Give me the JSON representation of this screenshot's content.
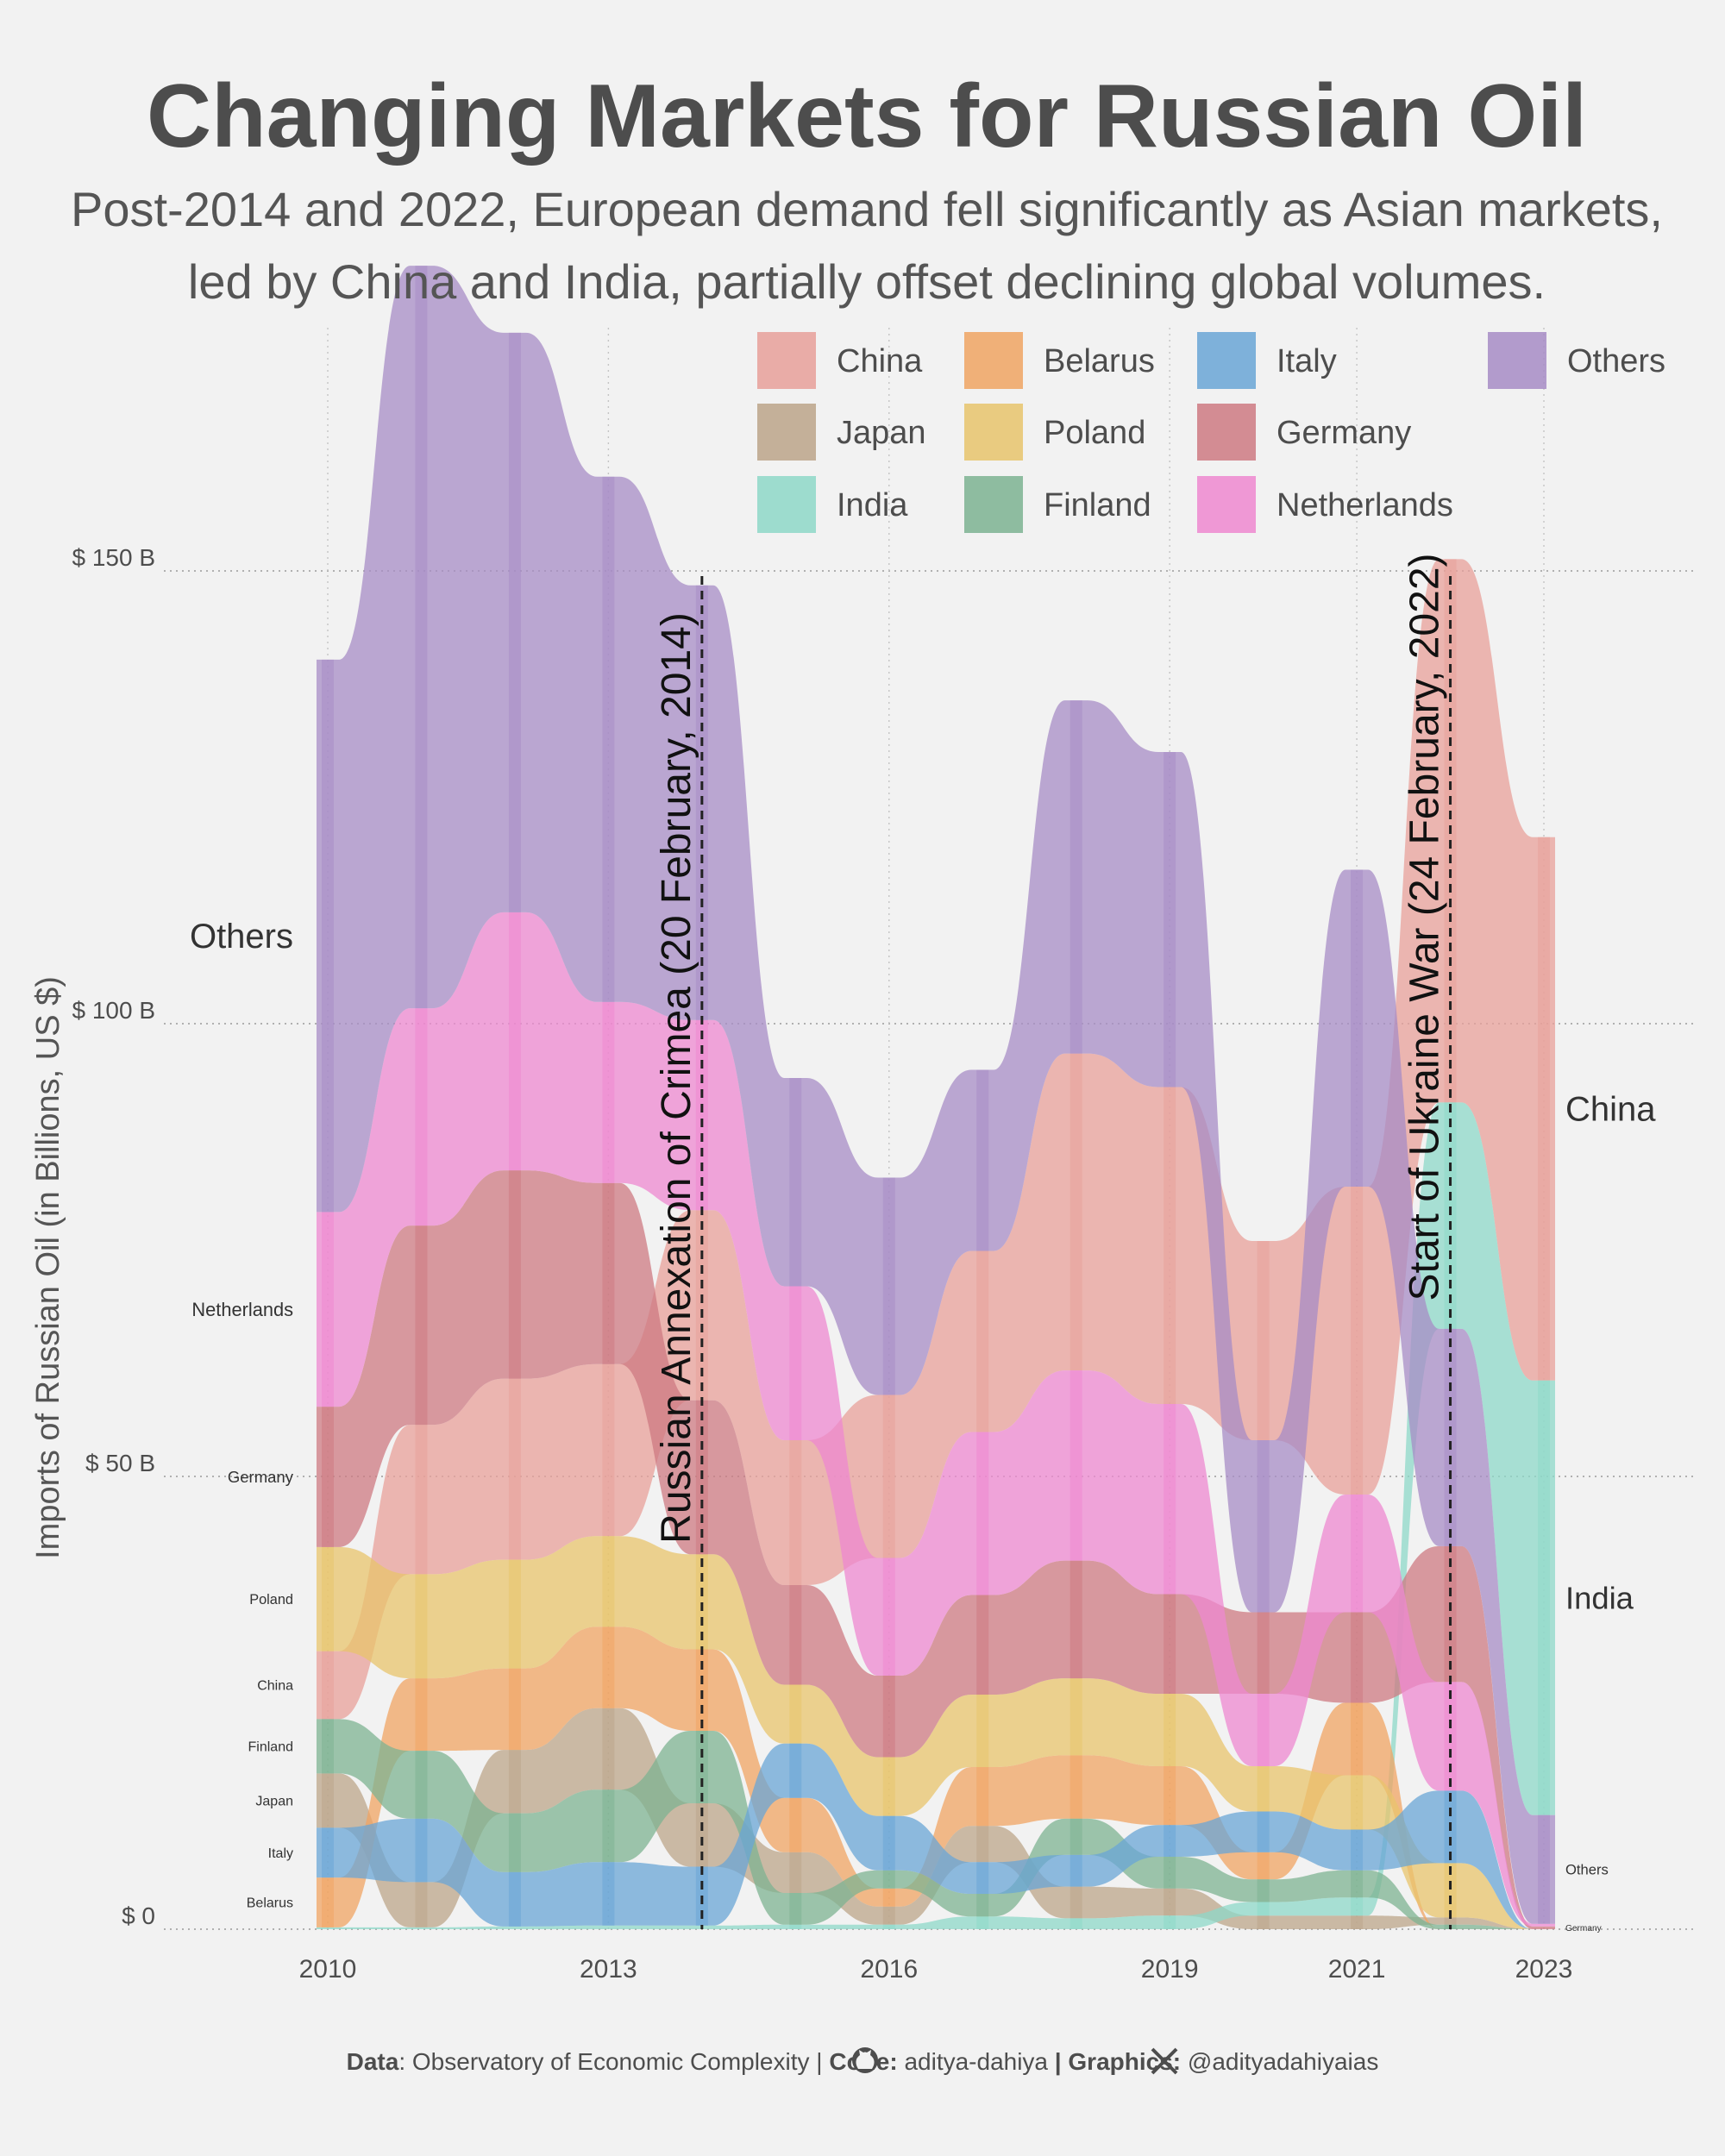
{
  "chart_data": {
    "type": "area",
    "title": "Changing Markets for Russian Oil",
    "subtitle_lines": [
      "Post-2014 and 2022, European demand fell significantly as Asian markets,",
      "led by China and India, partially offset declining global volumes."
    ],
    "ylabel": "Imports of Russian Oil (in Billions, US $)",
    "xlabel": "",
    "ylim": [
      0,
      180
    ],
    "x_ticks": [
      2010,
      2013,
      2016,
      2019,
      2021,
      2023
    ],
    "y_ticks": [
      {
        "value": 0,
        "label": "$ 0"
      },
      {
        "value": 50,
        "label": "$ 50 B"
      },
      {
        "value": 100,
        "label": "$ 100 B"
      },
      {
        "value": 150,
        "label": "$ 150 B"
      }
    ],
    "x": [
      2010,
      2011,
      2012,
      2013,
      2014,
      2015,
      2016,
      2017,
      2018,
      2019,
      2020,
      2021,
      2022,
      2023
    ],
    "series": [
      {
        "name": "China",
        "color": "#E8A09A",
        "values": [
          7.5,
          16.5,
          20,
          19,
          21,
          16,
          18,
          20,
          35,
          35,
          22,
          34,
          60,
          60
        ]
      },
      {
        "name": "Japan",
        "color": "#BCA58A",
        "values": [
          6,
          5,
          7,
          9,
          7,
          4.5,
          2,
          4,
          3.5,
          3,
          1.5,
          1.5,
          0.8,
          0
        ]
      },
      {
        "name": "India",
        "color": "#8ED8C8",
        "values": [
          0.2,
          0.2,
          0.3,
          0.4,
          0.4,
          0.5,
          0.5,
          1.4,
          1.2,
          1.5,
          1.5,
          2,
          25,
          48
        ]
      },
      {
        "name": "Belarus",
        "color": "#F0A463",
        "values": [
          5.5,
          8,
          9,
          9,
          9,
          6,
          2,
          6.5,
          7,
          6.5,
          3,
          8,
          0,
          0
        ]
      },
      {
        "name": "Poland",
        "color": "#E8C46C",
        "values": [
          11.5,
          11.5,
          12,
          10,
          10.5,
          6.5,
          6.5,
          8,
          8.5,
          8,
          5,
          6,
          6,
          0
        ]
      },
      {
        "name": "Finland",
        "color": "#7DB392",
        "values": [
          6,
          7.5,
          6.5,
          8,
          8,
          3.5,
          2,
          2.5,
          4,
          3.5,
          2.5,
          3,
          0.5,
          0
        ]
      },
      {
        "name": "Italy",
        "color": "#6AA6D6",
        "values": [
          5.5,
          7,
          6,
          7,
          6.5,
          6,
          6,
          3.5,
          3.5,
          3.5,
          4.5,
          4.5,
          8,
          0
        ]
      },
      {
        "name": "Germany",
        "color": "#CE7A82",
        "values": [
          15.5,
          22,
          23,
          20,
          17,
          11,
          9,
          11,
          13,
          11,
          9,
          10,
          15,
          0.3
        ]
      },
      {
        "name": "Netherlands",
        "color": "#EE88D0",
        "values": [
          21.5,
          24,
          28.5,
          20,
          21,
          17,
          13,
          18,
          21,
          21,
          8,
          13,
          12,
          0.3
        ]
      },
      {
        "name": "Others",
        "color": "#A78CC6",
        "values": [
          61,
          82,
          64,
          58,
          48,
          23,
          24,
          20,
          39,
          37,
          19,
          35,
          24,
          12
        ]
      }
    ],
    "stack_order_bottom_to_top": {
      "2010": [
        "Italy",
        "Belarus",
        "Japan",
        "Finland",
        "China",
        "Poland",
        "Germany",
        "Netherlands",
        "Others"
      ],
      "2023": [
        "Japan",
        "Belarus",
        "Poland",
        "Finland",
        "Italy",
        "Germany",
        "Netherlands",
        "Others",
        "India",
        "China"
      ]
    },
    "left_labels": [
      "Italy",
      "Belarus",
      "Japan",
      "Finland",
      "China",
      "Poland",
      "Germany",
      "Netherlands",
      "Others"
    ],
    "right_labels": [
      "Germany",
      "Others",
      "India",
      "China"
    ],
    "annotations": [
      {
        "x": 2014.0,
        "text": "Russian Annexation of Crimea (20 February, 2014)"
      },
      {
        "x": 2022.0,
        "text": "Start of Ukraine War (24 February, 2022)"
      }
    ],
    "legend": {
      "position": "top-right",
      "columns": [
        [
          "China",
          "Japan",
          "India"
        ],
        [
          "Belarus",
          "Poland",
          "Finland"
        ],
        [
          "Italy",
          "Germany",
          "Netherlands"
        ],
        [
          "Others"
        ]
      ]
    },
    "grid": true
  },
  "caption": {
    "data_key": "Data",
    "data_value": ": Observatory of Economic Complexity | ",
    "code_key": "Code:",
    "code_handle": " aditya-dahiya ",
    "graphics_key": " | Graphics:",
    "graphics_handle": " @adityadahiyaias",
    "github_icon": "github-icon",
    "x_icon": "x-logo-icon"
  },
  "style": {
    "background": "#f2f2f2",
    "text": "#4d4d4d"
  }
}
